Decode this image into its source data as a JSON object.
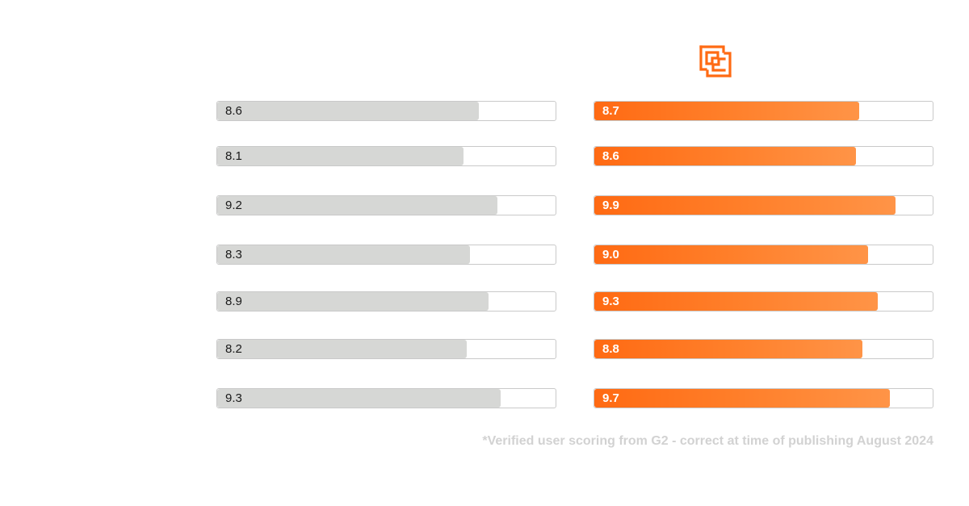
{
  "chart_data": {
    "type": "bar",
    "orientation": "horizontal",
    "xlim": [
      0,
      10
    ],
    "series": [
      {
        "values": [
          8.6,
          8.1,
          9.2,
          8.3,
          8.9,
          8.2,
          9.3
        ],
        "labels": [
          "8.6",
          "8.1",
          "9.2",
          "8.3",
          "8.9",
          "8.2",
          "9.3"
        ],
        "color": "#d6d7d5"
      },
      {
        "values": [
          8.7,
          8.6,
          9.9,
          9.0,
          9.3,
          8.8,
          9.7
        ],
        "labels": [
          "8.7",
          "8.6",
          "9.9",
          "9.0",
          "9.3",
          "8.8",
          "9.7"
        ],
        "color": "#ff6a13"
      }
    ]
  },
  "logo": {
    "icon": "maze-logo-icon",
    "color": "#ff6a13"
  },
  "footnote": "*Verified user scoring from G2 - correct at time of publishing August 2024"
}
